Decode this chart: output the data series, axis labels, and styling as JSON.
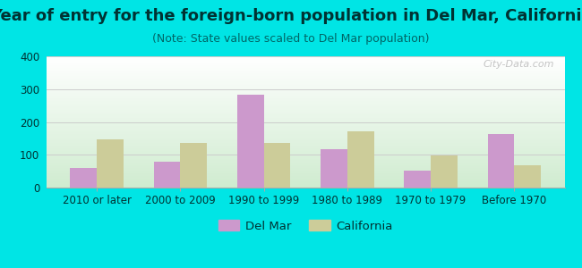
{
  "title": "Year of entry for the foreign-born population in Del Mar, California",
  "subtitle": "(Note: State values scaled to Del Mar population)",
  "categories": [
    "2010 or later",
    "2000 to 2009",
    "1990 to 1999",
    "1980 to 1989",
    "1970 to 1979",
    "Before 1970"
  ],
  "del_mar": [
    60,
    78,
    283,
    118,
    52,
    162
  ],
  "california": [
    148,
    137,
    137,
    172,
    98,
    68
  ],
  "del_mar_color": "#cc99cc",
  "california_color": "#cccc99",
  "ylim": [
    0,
    400
  ],
  "yticks": [
    0,
    100,
    200,
    300,
    400
  ],
  "background_color": "#00e5e5",
  "plot_bg_gradient_top": "#ffffff",
  "plot_bg_gradient_bottom": "#d0ecd0",
  "grid_color": "#cccccc",
  "title_fontsize": 13,
  "subtitle_fontsize": 9,
  "tick_fontsize": 8.5,
  "legend_fontsize": 9.5,
  "title_color": "#003333",
  "subtitle_color": "#006666",
  "tick_color": "#003333",
  "watermark_text": "City-Data.com",
  "watermark_color": "#bbbbbb",
  "legend_label_del_mar": "Del Mar",
  "legend_label_california": "California"
}
